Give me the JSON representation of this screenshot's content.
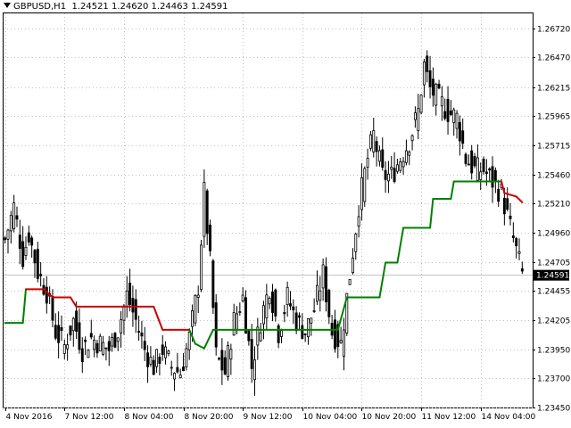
{
  "header": {
    "symbol": "GBPUSD,H1",
    "open": "1.24521",
    "high": "1.24620",
    "low": "1.24463",
    "close": "1.24591"
  },
  "current_price_label": "1.24591",
  "colors": {
    "candle": "#000000",
    "trend_up": "#008000",
    "trend_down": "#cc0000",
    "grid": "#c0c0c0",
    "price_label_bg": "#000000"
  },
  "chart_data": {
    "type": "candlestick",
    "grid": true,
    "ylim": [
      1.2345,
      1.2685
    ],
    "y_ticks": [
      "1.26720",
      "1.26470",
      "1.26215",
      "1.25965",
      "1.25715",
      "1.25460",
      "1.25210",
      "1.24960",
      "1.24705",
      "1.24455",
      "1.24205",
      "1.23950",
      "1.23700",
      "1.23450"
    ],
    "x_ticks": [
      "4 Nov 2016",
      "7 Nov 12:00",
      "8 Nov 04:00",
      "8 Nov 20:00",
      "9 Nov 12:00",
      "10 Nov 04:00",
      "10 Nov 20:00",
      "11 Nov 12:00",
      "14 Nov 04:00"
    ],
    "close_path": [
      [
        0,
        1.249
      ],
      [
        3,
        1.2518
      ],
      [
        6,
        1.2475
      ],
      [
        8,
        1.2495
      ],
      [
        11,
        1.2462
      ],
      [
        14,
        1.2445
      ],
      [
        17,
        1.241
      ],
      [
        20,
        1.2398
      ],
      [
        23,
        1.242
      ],
      [
        26,
        1.2395
      ],
      [
        29,
        1.2405
      ],
      [
        32,
        1.24
      ],
      [
        35,
        1.2395
      ],
      [
        38,
        1.2412
      ],
      [
        41,
        1.2442
      ],
      [
        44,
        1.242
      ],
      [
        47,
        1.2395
      ],
      [
        50,
        1.238
      ],
      [
        53,
        1.2395
      ],
      [
        56,
        1.238
      ],
      [
        59,
        1.2375
      ],
      [
        62,
        1.2405
      ],
      [
        65,
        1.245
      ],
      [
        67,
        1.253
      ],
      [
        69,
        1.247
      ],
      [
        71,
        1.239
      ],
      [
        74,
        1.2375
      ],
      [
        77,
        1.242
      ],
      [
        80,
        1.244
      ],
      [
        83,
        1.238
      ],
      [
        86,
        1.242
      ],
      [
        89,
        1.245
      ],
      [
        92,
        1.241
      ],
      [
        95,
        1.244
      ],
      [
        98,
        1.242
      ],
      [
        101,
        1.241
      ],
      [
        104,
        1.243
      ],
      [
        107,
        1.246
      ],
      [
        110,
        1.241
      ],
      [
        113,
        1.24
      ],
      [
        116,
        1.246
      ],
      [
        119,
        1.252
      ],
      [
        122,
        1.256
      ],
      [
        124,
        1.258
      ],
      [
        127,
        1.2545
      ],
      [
        130,
        1.2545
      ],
      [
        133,
        1.256
      ],
      [
        136,
        1.2575
      ],
      [
        139,
        1.26
      ],
      [
        141,
        1.264
      ],
      [
        143,
        1.262
      ],
      [
        146,
        1.261
      ],
      [
        149,
        1.26
      ],
      [
        152,
        1.2595
      ],
      [
        155,
        1.256
      ],
      [
        158,
        1.255
      ],
      [
        161,
        1.255
      ],
      [
        164,
        1.254
      ],
      [
        167,
        1.253
      ],
      [
        169,
        1.251
      ],
      [
        171,
        1.249
      ],
      [
        174,
        1.246
      ]
    ],
    "trend_line": [
      [
        0,
        1.2418
      ],
      [
        6,
        1.2418
      ],
      [
        7,
        1.2447
      ],
      [
        13,
        1.2447
      ],
      [
        16,
        1.244
      ],
      [
        22,
        1.244
      ],
      [
        24,
        1.2432
      ],
      [
        50,
        1.2432
      ],
      [
        53,
        1.2412
      ],
      [
        62,
        1.2412
      ],
      [
        64,
        1.24
      ],
      [
        67,
        1.2396
      ],
      [
        70,
        1.2412
      ],
      [
        112,
        1.2412
      ],
      [
        115,
        1.244
      ],
      [
        126,
        1.244
      ],
      [
        128,
        1.247
      ],
      [
        132,
        1.247
      ],
      [
        134,
        1.25
      ],
      [
        143,
        1.25
      ],
      [
        144,
        1.2525
      ],
      [
        150,
        1.2525
      ],
      [
        151,
        1.254
      ],
      [
        167,
        1.254
      ],
      [
        168,
        1.253
      ],
      [
        172,
        1.2527
      ],
      [
        174,
        1.2522
      ]
    ],
    "trend_red_ranges": [
      [
        10,
        62
      ],
      [
        167,
        174
      ]
    ]
  }
}
